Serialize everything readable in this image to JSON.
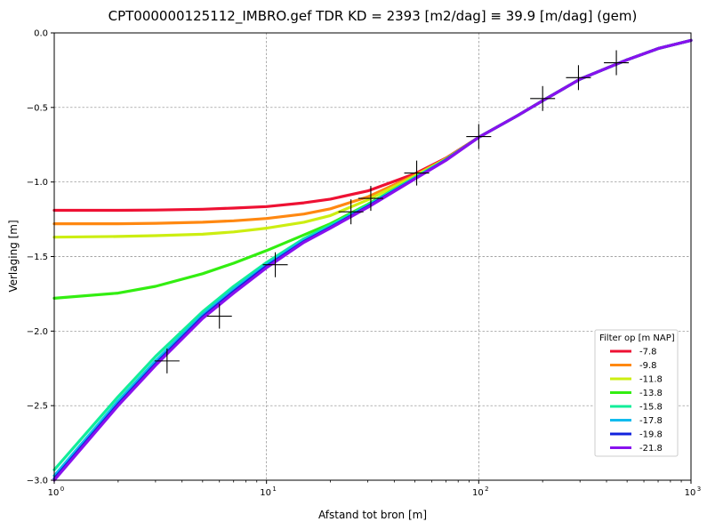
{
  "chart_data": {
    "type": "line",
    "title": "CPT000000125112_IMBRO.gef TDR   KD = 2393 [m2/dag] ≡ 39.9 [m/dag] (gem)",
    "xlabel": "Afstand tot bron [m]",
    "ylabel": "Verlaging [m]",
    "xscale": "log",
    "xlim": [
      1,
      1000
    ],
    "ylim": [
      -3.0,
      0.0
    ],
    "x_ticks": [
      {
        "value": 1,
        "base": "10",
        "exp": "0"
      },
      {
        "value": 10,
        "base": "10",
        "exp": "1"
      },
      {
        "value": 100,
        "base": "10",
        "exp": "2"
      },
      {
        "value": 1000,
        "base": "10",
        "exp": "3"
      }
    ],
    "y_ticks": [
      {
        "value": 0.0,
        "label": "0.0"
      },
      {
        "value": -0.5,
        "label": "−0.5"
      },
      {
        "value": -1.0,
        "label": "−1.0"
      },
      {
        "value": -1.5,
        "label": "−1.5"
      },
      {
        "value": -2.0,
        "label": "−2.0"
      },
      {
        "value": -2.5,
        "label": "−2.5"
      },
      {
        "value": -3.0,
        "label": "−3.0"
      }
    ],
    "grid": true,
    "legend": {
      "title": "Filter op [m NAP]",
      "placement": "lower-right"
    },
    "x": [
      1,
      2,
      3,
      5,
      7,
      10,
      15,
      20,
      30,
      50,
      70,
      100,
      150,
      200,
      300,
      500,
      700,
      1000
    ],
    "series": [
      {
        "name": "-7.8",
        "color": "#ee1133",
        "values": [
          -1.19,
          -1.19,
          -1.188,
          -1.183,
          -1.175,
          -1.165,
          -1.14,
          -1.115,
          -1.06,
          -0.945,
          -0.84,
          -0.7,
          -0.56,
          -0.455,
          -0.31,
          -0.18,
          -0.105,
          -0.05
        ]
      },
      {
        "name": "-9.8",
        "color": "#ff8811",
        "values": [
          -1.28,
          -1.28,
          -1.277,
          -1.27,
          -1.26,
          -1.245,
          -1.215,
          -1.18,
          -1.1,
          -0.955,
          -0.845,
          -0.7,
          -0.56,
          -0.455,
          -0.31,
          -0.18,
          -0.105,
          -0.05
        ]
      },
      {
        "name": "-11.8",
        "color": "#ccee11",
        "values": [
          -1.37,
          -1.365,
          -1.36,
          -1.35,
          -1.335,
          -1.31,
          -1.27,
          -1.225,
          -1.12,
          -0.96,
          -0.845,
          -0.7,
          -0.56,
          -0.455,
          -0.31,
          -0.18,
          -0.105,
          -0.05
        ]
      },
      {
        "name": "-13.8",
        "color": "#33ee11",
        "values": [
          -1.78,
          -1.745,
          -1.7,
          -1.615,
          -1.545,
          -1.46,
          -1.355,
          -1.28,
          -1.15,
          -0.97,
          -0.85,
          -0.7,
          -0.56,
          -0.455,
          -0.31,
          -0.18,
          -0.105,
          -0.05
        ]
      },
      {
        "name": "-15.8",
        "color": "#11ee99",
        "values": [
          -2.93,
          -2.44,
          -2.17,
          -1.87,
          -1.7,
          -1.54,
          -1.38,
          -1.29,
          -1.155,
          -0.97,
          -0.85,
          -0.7,
          -0.56,
          -0.455,
          -0.31,
          -0.18,
          -0.105,
          -0.05
        ]
      },
      {
        "name": "-17.8",
        "color": "#11bbee",
        "values": [
          -2.97,
          -2.47,
          -2.2,
          -1.89,
          -1.72,
          -1.555,
          -1.39,
          -1.3,
          -1.16,
          -0.975,
          -0.852,
          -0.7,
          -0.56,
          -0.455,
          -0.31,
          -0.18,
          -0.105,
          -0.05
        ]
      },
      {
        "name": "-19.8",
        "color": "#1122dd",
        "values": [
          -2.99,
          -2.49,
          -2.22,
          -1.905,
          -1.735,
          -1.565,
          -1.4,
          -1.305,
          -1.165,
          -0.978,
          -0.853,
          -0.7,
          -0.56,
          -0.455,
          -0.31,
          -0.18,
          -0.105,
          -0.05
        ]
      },
      {
        "name": "-21.8",
        "color": "#8811ee",
        "values": [
          -3.0,
          -2.5,
          -2.23,
          -1.915,
          -1.745,
          -1.575,
          -1.405,
          -1.31,
          -1.17,
          -0.98,
          -0.855,
          -0.7,
          -0.56,
          -0.455,
          -0.31,
          -0.18,
          -0.105,
          -0.05
        ]
      }
    ],
    "markers": {
      "symbol": "+",
      "color": "#000000",
      "points": [
        {
          "x": 3.4,
          "y": -2.2
        },
        {
          "x": 6.0,
          "y": -1.9
        },
        {
          "x": 11.0,
          "y": -1.555
        },
        {
          "x": 25.0,
          "y": -1.2
        },
        {
          "x": 31.0,
          "y": -1.11
        },
        {
          "x": 51.0,
          "y": -0.94
        },
        {
          "x": 100.0,
          "y": -0.695
        },
        {
          "x": 200.0,
          "y": -0.44
        },
        {
          "x": 295.0,
          "y": -0.3
        },
        {
          "x": 445.0,
          "y": -0.2
        }
      ]
    }
  }
}
